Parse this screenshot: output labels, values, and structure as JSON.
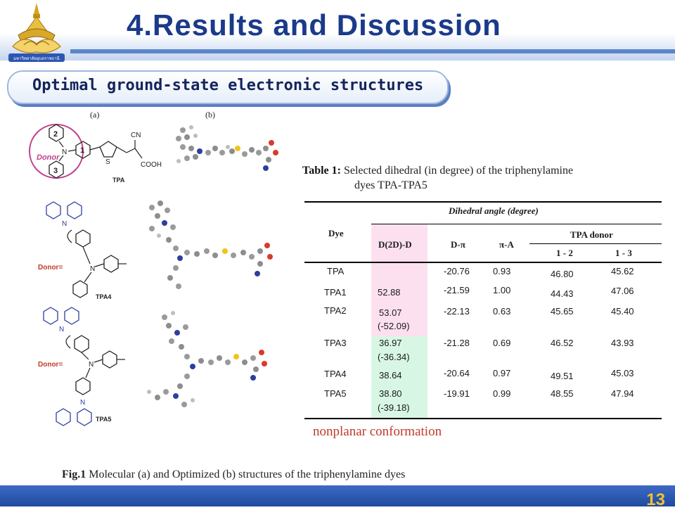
{
  "header": {
    "title": "4.Results and Discussion",
    "logo_text": "มหาวิทยาลัยอุบลราชธานี"
  },
  "section": {
    "subtitle": "Optimal ground-state electronic structures"
  },
  "figure": {
    "panel_a": "(a)",
    "panel_b": "(b)",
    "labels": {
      "donor": "Donor",
      "donor_eq1": "Donor=",
      "donor_eq2": "Donor=",
      "tpa": "TPA",
      "tpa4": "TPA4",
      "tpa5": "TPA5",
      "ring1": "1",
      "ring2": "2",
      "ring3": "3",
      "cn": "CN",
      "cooh": "COOH",
      "n": "N",
      "s": "S"
    },
    "caption_bold": "Fig.1",
    "caption_text": " Molecular (a) and Optimized (b) structures of the triphenylamine dyes"
  },
  "table": {
    "caption_bold": "Table 1:",
    "caption_line1": " Selected dihedral (in degree) of the triphenylamine",
    "caption_line2": "dyes TPA-TPA5",
    "headers": {
      "dye": "Dye",
      "dihedral": "Dihedral angle (degree)",
      "d2d": "D(2D)-D",
      "dpi": "D-π",
      "pia": "π-A",
      "tpa_donor": "TPA donor",
      "c12": "1 - 2",
      "c13": "1 - 3"
    },
    "rows": [
      {
        "dye": "TPA",
        "d2d": "",
        "d2d2": "",
        "dpi": "-20.76",
        "pia": "0.93",
        "c12": "46.80",
        "c13": "45.62"
      },
      {
        "dye": "TPA1",
        "d2d": "52.88",
        "d2d2": "",
        "dpi": "-21.59",
        "pia": "1.00",
        "c12": "44.43",
        "c13": "47.06"
      },
      {
        "dye": "TPA2",
        "d2d": "53.07",
        "d2d2": "(-52.09)",
        "dpi": "-22.13",
        "pia": "0.63",
        "c12": "45.65",
        "c13": "45.40"
      },
      {
        "dye": "TPA3",
        "d2d": "36.97",
        "d2d2": "(-36.34)",
        "dpi": "-21.28",
        "pia": "0.69",
        "c12": "46.52",
        "c13": "43.93"
      },
      {
        "dye": "TPA4",
        "d2d": "38.64",
        "d2d2": "",
        "dpi": "-20.64",
        "pia": "0.97",
        "c12": "49.51",
        "c13": "45.03"
      },
      {
        "dye": "TPA5",
        "d2d": "38.80",
        "d2d2": "(-39.18)",
        "dpi": "-19.91",
        "pia": "0.99",
        "c12": "48.55",
        "c13": "47.94"
      }
    ],
    "highlight_pink": "#fde0f0",
    "highlight_green": "#d8f6e4"
  },
  "note": "nonplanar conformation",
  "page_number": "13",
  "colors": {
    "title": "#1a3a8a",
    "accent_bar": "#5b86c9",
    "note": "#c0392b",
    "page_number": "#f2c230",
    "donor_circle": "#c0408a"
  }
}
